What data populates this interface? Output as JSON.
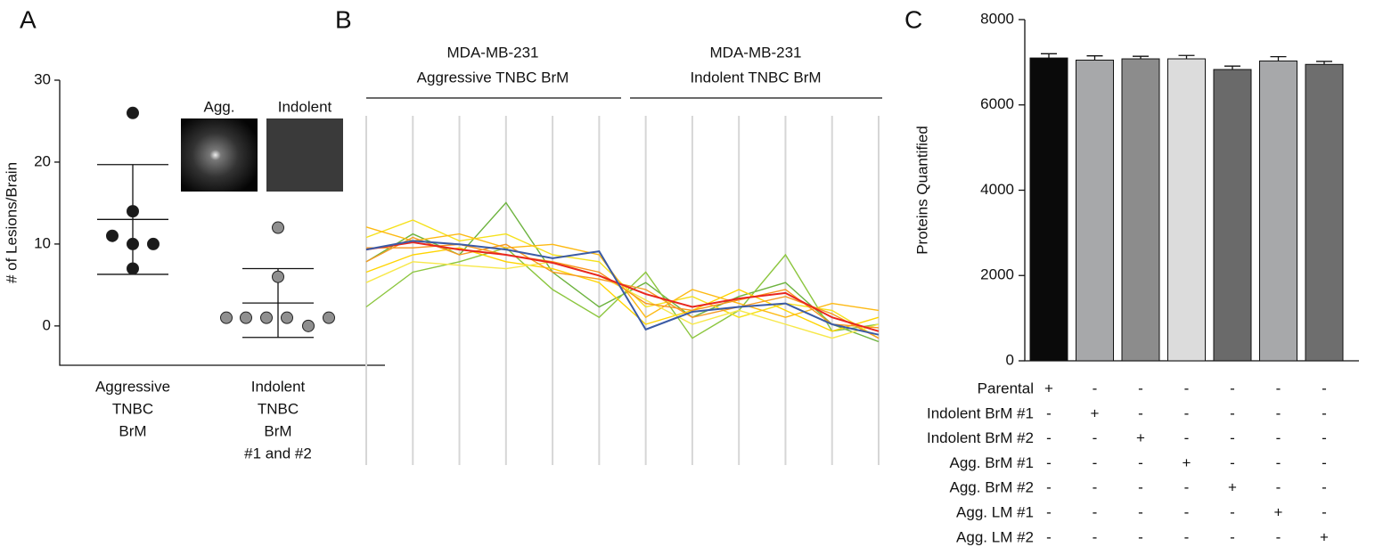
{
  "chart_data": [
    {
      "type": "dotplot",
      "panel": "A",
      "ylabel": "# of Lesions/Brain",
      "categories": [
        [
          "Aggressive",
          "TNBC",
          "BrM"
        ],
        [
          "Indolent",
          "TNBC",
          "BrM",
          "#1 and #2"
        ]
      ],
      "groups": [
        {
          "values": [
            26,
            14,
            11,
            10,
            10,
            7
          ],
          "mean": 13,
          "sd": 6.7,
          "color": "#1a1a1a"
        },
        {
          "values": [
            12,
            6,
            1,
            1,
            1,
            1,
            0,
            1
          ],
          "mean": 2.8,
          "sd": 4.2,
          "color": "#8f8f8f"
        }
      ],
      "inset_labels": [
        "Agg.",
        "Indolent"
      ],
      "ylim": [
        -4.8,
        30
      ],
      "yticks": [
        0,
        10,
        20,
        30
      ]
    },
    {
      "type": "profile",
      "panel": "B",
      "group_labels": [
        [
          "MDA-MB-231",
          "Aggressive TNBC BrM"
        ],
        [
          "MDA-MB-231",
          "Indolent TNBC BrM"
        ]
      ],
      "categories": [
        null,
        null,
        null,
        null,
        null,
        null,
        null,
        null,
        null,
        null,
        null,
        null
      ],
      "ylim": [
        0,
        100
      ],
      "series": [
        {
          "color": "#6db33f",
          "values": [
            58,
            66,
            60,
            75,
            55,
            45,
            52,
            42,
            48,
            52,
            40,
            35
          ]
        },
        {
          "color": "#8cc63f",
          "values": [
            45,
            55,
            58,
            62,
            50,
            42,
            55,
            36,
            44,
            60,
            38,
            40
          ]
        },
        {
          "color": "#f5e11b",
          "values": [
            65,
            70,
            64,
            66,
            60,
            58,
            45,
            48,
            42,
            46,
            44,
            36
          ]
        },
        {
          "color": "#ffd400",
          "values": [
            55,
            60,
            62,
            58,
            56,
            52,
            40,
            44,
            50,
            44,
            38,
            42
          ]
        },
        {
          "color": "#fdb913",
          "values": [
            68,
            64,
            66,
            62,
            63,
            60,
            42,
            50,
            46,
            42,
            46,
            44
          ]
        },
        {
          "color": "#f7e84a",
          "values": [
            52,
            58,
            57,
            56,
            58,
            54,
            47,
            40,
            44,
            40,
            36,
            40
          ]
        },
        {
          "color": "#f7941d",
          "values": [
            62,
            62,
            63,
            60,
            58,
            55,
            46,
            44,
            47,
            50,
            40,
            39
          ]
        },
        {
          "color": "#f59a23",
          "values": [
            58,
            65,
            60,
            63,
            55,
            53,
            50,
            42,
            45,
            48,
            43,
            36
          ]
        },
        {
          "color": "#e8261f",
          "values": [
            61.5,
            63.6,
            61.5,
            60,
            57.7,
            54,
            48.7,
            45,
            47.4,
            49,
            42,
            38
          ]
        },
        {
          "color": "#3b5ba5",
          "values": [
            61.5,
            64,
            63,
            61.5,
            59,
            61,
            38.5,
            43.6,
            45,
            46,
            40,
            37
          ]
        }
      ]
    },
    {
      "type": "bar",
      "panel": "C",
      "ylabel": "Proteins Quantified",
      "values": [
        7100,
        7050,
        7080,
        7080,
        6830,
        7030,
        6950
      ],
      "errors": [
        100,
        100,
        60,
        80,
        80,
        100,
        70
      ],
      "colors": [
        "#0a0a0a",
        "#a7a8aa",
        "#8c8c8c",
        "#dcdcdc",
        "#6a6a6a",
        "#a7a8aa",
        "#6e6e6e"
      ],
      "ylim": [
        0,
        8000
      ],
      "yticks": [
        0,
        2000,
        4000,
        6000,
        8000
      ],
      "conditions": [
        {
          "label": "Parental",
          "cells": [
            "+",
            "-",
            "-",
            "-",
            "-",
            "-",
            "-"
          ]
        },
        {
          "label": "Indolent BrM #1",
          "cells": [
            "-",
            "+",
            "-",
            "-",
            "-",
            "-",
            "-"
          ]
        },
        {
          "label": "Indolent BrM #2",
          "cells": [
            "-",
            "-",
            "+",
            "-",
            "-",
            "-",
            "-"
          ]
        },
        {
          "label": "Agg. BrM #1",
          "cells": [
            "-",
            "-",
            "-",
            "+",
            "-",
            "-",
            "-"
          ]
        },
        {
          "label": "Agg. BrM #2",
          "cells": [
            "-",
            "-",
            "-",
            "-",
            "+",
            "-",
            "-"
          ]
        },
        {
          "label": "Agg. LM #1",
          "cells": [
            "-",
            "-",
            "-",
            "-",
            "-",
            "+",
            "-"
          ]
        },
        {
          "label": "Agg. LM #2",
          "cells": [
            "-",
            "-",
            "-",
            "-",
            "-",
            "-",
            "+"
          ]
        }
      ]
    }
  ]
}
